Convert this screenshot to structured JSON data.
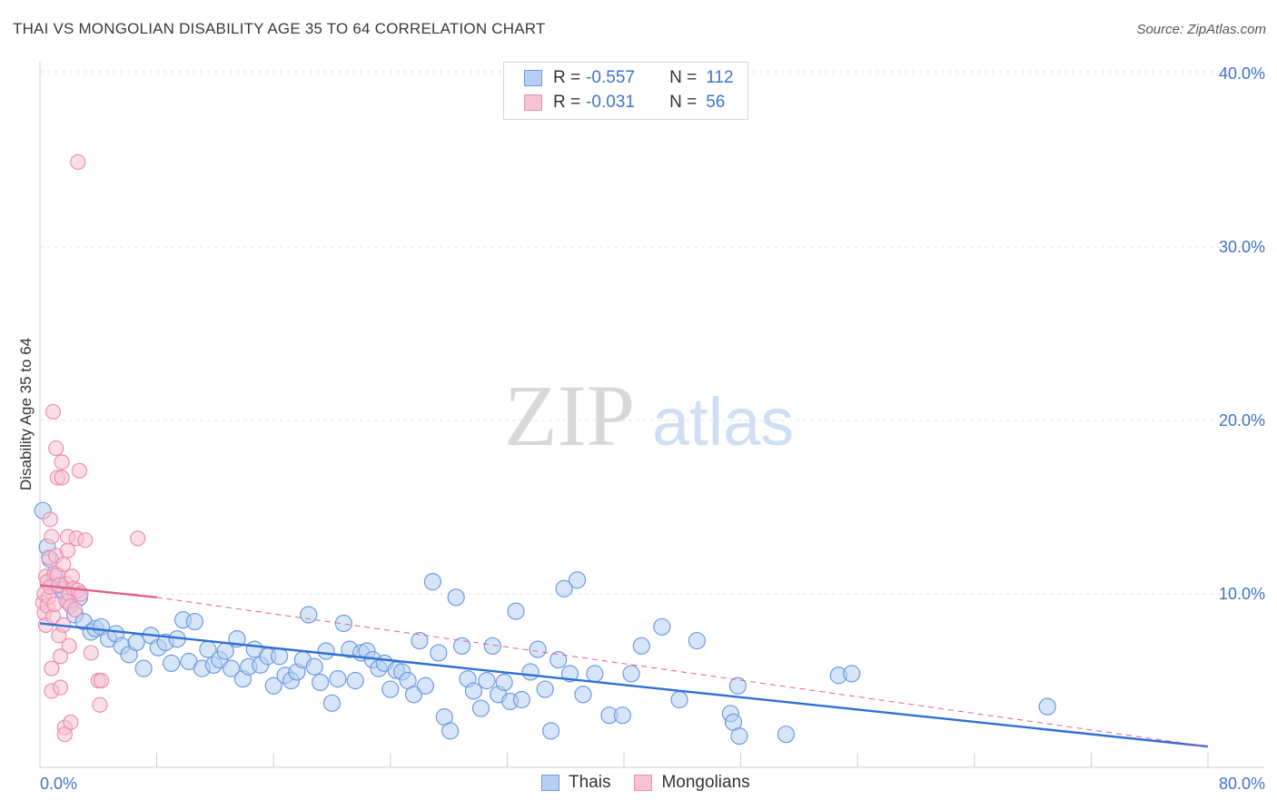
{
  "title": "THAI VS MONGOLIAN DISABILITY AGE 35 TO 64 CORRELATION CHART",
  "source": "Source: ZipAtlas.com",
  "watermark": {
    "zip": "ZIP",
    "atlas": "atlas"
  },
  "legend": {
    "rows": [
      {
        "r_label": "R = ",
        "r_value": "-0.557",
        "n_label": "N = ",
        "n_value": "112",
        "color": "#6e9be0"
      },
      {
        "r_label": "R = ",
        "r_value": "-0.031",
        "n_label": "N = ",
        "n_value": "56",
        "color": "#ec8fb0"
      }
    ]
  },
  "bottom_legend": {
    "thais": "Thais",
    "mongolians": "Mongolians"
  },
  "colors": {
    "blue": "#6e9be0",
    "blue_fill": "#b7cff2",
    "blue_line": "#2f6fd4",
    "pink": "#ec8fb0",
    "pink_fill": "#f7c3d3",
    "pink_line": "#e2608c",
    "axis_text": "#3f74c9"
  },
  "chart_data": {
    "type": "scatter",
    "title": "THAI VS MONGOLIAN DISABILITY AGE 35 TO 64 CORRELATION CHART",
    "xlabel": "",
    "ylabel": "Disability Age 35 to 64",
    "xlim": [
      0,
      80
    ],
    "ylim": [
      0,
      42
    ],
    "x_tick_labels": [
      "0.0%",
      "80.0%"
    ],
    "y_ticks": [
      10,
      20,
      30,
      40
    ],
    "y_tick_labels": [
      "10.0%",
      "20.0%",
      "30.0%",
      "40.0%"
    ],
    "series": [
      {
        "name": "Thais",
        "trend": {
          "x": [
            0,
            80
          ],
          "y": [
            8.3,
            1.2
          ]
        },
        "points": [
          [
            0.2,
            14.8
          ],
          [
            0.5,
            12.7
          ],
          [
            0.7,
            12.0
          ],
          [
            1.0,
            11.0
          ],
          [
            1.3,
            10.5
          ],
          [
            1.6,
            10.2
          ],
          [
            2.0,
            9.5
          ],
          [
            2.4,
            8.8
          ],
          [
            2.7,
            9.8
          ],
          [
            3.0,
            8.4
          ],
          [
            3.5,
            7.8
          ],
          [
            3.8,
            8.0
          ],
          [
            4.2,
            8.1
          ],
          [
            4.7,
            7.4
          ],
          [
            5.2,
            7.7
          ],
          [
            5.6,
            7.0
          ],
          [
            6.1,
            6.5
          ],
          [
            6.6,
            7.2
          ],
          [
            7.1,
            5.7
          ],
          [
            7.6,
            7.6
          ],
          [
            8.1,
            6.9
          ],
          [
            8.6,
            7.2
          ],
          [
            9.0,
            6.0
          ],
          [
            9.4,
            7.4
          ],
          [
            9.8,
            8.5
          ],
          [
            10.2,
            6.1
          ],
          [
            10.6,
            8.4
          ],
          [
            11.1,
            5.7
          ],
          [
            11.5,
            6.8
          ],
          [
            11.9,
            5.9
          ],
          [
            12.3,
            6.2
          ],
          [
            12.7,
            6.7
          ],
          [
            13.1,
            5.7
          ],
          [
            13.5,
            7.4
          ],
          [
            13.9,
            5.1
          ],
          [
            14.3,
            5.8
          ],
          [
            14.7,
            6.8
          ],
          [
            15.1,
            5.9
          ],
          [
            15.6,
            6.4
          ],
          [
            16.0,
            4.7
          ],
          [
            16.4,
            6.4
          ],
          [
            16.8,
            5.3
          ],
          [
            17.2,
            5.0
          ],
          [
            17.6,
            5.5
          ],
          [
            18.0,
            6.2
          ],
          [
            18.4,
            8.8
          ],
          [
            18.8,
            5.8
          ],
          [
            19.2,
            4.9
          ],
          [
            19.6,
            6.7
          ],
          [
            20.0,
            3.7
          ],
          [
            20.4,
            5.1
          ],
          [
            20.8,
            8.3
          ],
          [
            21.2,
            6.8
          ],
          [
            21.6,
            5.0
          ],
          [
            22.0,
            6.6
          ],
          [
            22.4,
            6.7
          ],
          [
            22.8,
            6.2
          ],
          [
            23.2,
            5.7
          ],
          [
            23.6,
            6.0
          ],
          [
            24.0,
            4.5
          ],
          [
            24.4,
            5.6
          ],
          [
            24.8,
            5.5
          ],
          [
            25.2,
            5.0
          ],
          [
            25.6,
            4.2
          ],
          [
            26.0,
            7.3
          ],
          [
            26.4,
            4.7
          ],
          [
            26.9,
            10.7
          ],
          [
            27.3,
            6.6
          ],
          [
            27.7,
            2.9
          ],
          [
            28.1,
            2.1
          ],
          [
            28.5,
            9.8
          ],
          [
            28.9,
            7.0
          ],
          [
            29.3,
            5.1
          ],
          [
            29.7,
            4.4
          ],
          [
            30.2,
            3.4
          ],
          [
            30.6,
            5.0
          ],
          [
            31.0,
            7.0
          ],
          [
            31.4,
            4.2
          ],
          [
            31.8,
            4.9
          ],
          [
            32.2,
            3.8
          ],
          [
            32.6,
            9.0
          ],
          [
            33.0,
            3.9
          ],
          [
            33.6,
            5.5
          ],
          [
            34.1,
            6.8
          ],
          [
            34.6,
            4.5
          ],
          [
            35.0,
            2.1
          ],
          [
            35.5,
            6.2
          ],
          [
            35.9,
            10.3
          ],
          [
            36.3,
            5.4
          ],
          [
            36.8,
            10.8
          ],
          [
            37.2,
            4.2
          ],
          [
            38.0,
            5.4
          ],
          [
            39.0,
            3.0
          ],
          [
            39.9,
            3.0
          ],
          [
            40.5,
            5.4
          ],
          [
            41.2,
            7.0
          ],
          [
            42.6,
            8.1
          ],
          [
            43.8,
            3.9
          ],
          [
            45.0,
            7.3
          ],
          [
            47.3,
            3.1
          ],
          [
            47.8,
            4.7
          ],
          [
            47.5,
            2.6
          ],
          [
            47.9,
            1.8
          ],
          [
            51.1,
            1.9
          ],
          [
            54.7,
            5.3
          ],
          [
            55.6,
            5.4
          ],
          [
            69.0,
            3.5
          ]
        ]
      },
      {
        "name": "Mongolians",
        "trend": {
          "x": [
            0,
            8
          ],
          "y": [
            10.5,
            9.8
          ]
        },
        "trend_dashed": {
          "x": [
            8,
            80
          ],
          "y": [
            9.8,
            1.2
          ]
        },
        "points": [
          [
            0.2,
            9.5
          ],
          [
            0.3,
            10.0
          ],
          [
            0.3,
            8.9
          ],
          [
            0.4,
            8.2
          ],
          [
            0.4,
            11.0
          ],
          [
            0.5,
            9.3
          ],
          [
            0.5,
            10.7
          ],
          [
            0.6,
            12.1
          ],
          [
            0.6,
            9.8
          ],
          [
            0.7,
            14.3
          ],
          [
            0.7,
            10.4
          ],
          [
            0.8,
            13.3
          ],
          [
            0.8,
            5.7
          ],
          [
            0.8,
            4.4
          ],
          [
            0.9,
            8.7
          ],
          [
            0.9,
            20.5
          ],
          [
            1.0,
            9.4
          ],
          [
            1.0,
            11.2
          ],
          [
            1.1,
            12.2
          ],
          [
            1.1,
            18.4
          ],
          [
            1.2,
            11.1
          ],
          [
            1.2,
            16.7
          ],
          [
            1.3,
            10.5
          ],
          [
            1.3,
            7.6
          ],
          [
            1.4,
            6.4
          ],
          [
            1.4,
            4.6
          ],
          [
            1.5,
            17.6
          ],
          [
            1.5,
            16.7
          ],
          [
            1.6,
            8.2
          ],
          [
            1.6,
            11.7
          ],
          [
            1.7,
            2.3
          ],
          [
            1.7,
            1.9
          ],
          [
            1.8,
            10.6
          ],
          [
            1.8,
            9.6
          ],
          [
            1.9,
            12.5
          ],
          [
            1.9,
            13.3
          ],
          [
            2.0,
            7.0
          ],
          [
            2.0,
            10.0
          ],
          [
            2.1,
            2.6
          ],
          [
            2.1,
            9.3
          ],
          [
            2.2,
            11.0
          ],
          [
            2.3,
            10.3
          ],
          [
            2.4,
            9.1
          ],
          [
            2.5,
            13.2
          ],
          [
            2.6,
            10.2
          ],
          [
            2.6,
            34.9
          ],
          [
            2.7,
            17.1
          ],
          [
            2.8,
            10.0
          ],
          [
            3.1,
            13.1
          ],
          [
            3.5,
            6.6
          ],
          [
            4.0,
            5.0
          ],
          [
            4.1,
            3.6
          ],
          [
            4.2,
            5.0
          ],
          [
            6.7,
            13.2
          ]
        ]
      }
    ]
  }
}
